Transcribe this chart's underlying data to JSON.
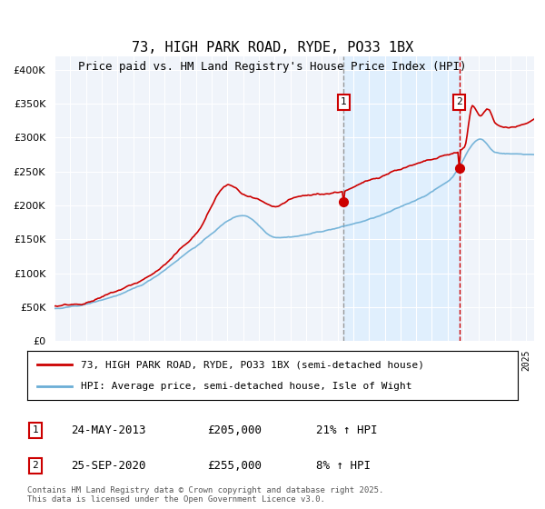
{
  "title": "73, HIGH PARK ROAD, RYDE, PO33 1BX",
  "subtitle": "Price paid vs. HM Land Registry's House Price Index (HPI)",
  "legend_line1": "73, HIGH PARK ROAD, RYDE, PO33 1BX (semi-detached house)",
  "legend_line2": "HPI: Average price, semi-detached house, Isle of Wight",
  "annotation1_label": "1",
  "annotation1_date": "24-MAY-2013",
  "annotation1_price": "£205,000",
  "annotation1_hpi": "21% ↑ HPI",
  "annotation2_label": "2",
  "annotation2_date": "25-SEP-2020",
  "annotation2_price": "£255,000",
  "annotation2_hpi": "8% ↑ HPI",
  "copyright": "Contains HM Land Registry data © Crown copyright and database right 2025.\nThis data is licensed under the Open Government Licence v3.0.",
  "ylim": [
    0,
    420000
  ],
  "yticks": [
    0,
    50000,
    100000,
    150000,
    200000,
    250000,
    300000,
    350000,
    400000
  ],
  "ytick_labels": [
    "£0",
    "£50K",
    "£100K",
    "£150K",
    "£200K",
    "£250K",
    "£300K",
    "£350K",
    "£400K"
  ],
  "background_color": "#f0f4fa",
  "plot_bg": "#f0f4fa",
  "red_line_color": "#cc0000",
  "blue_line_color": "#6baed6",
  "shade_color": "#ddeeff",
  "vline1_color": "#888888",
  "vline2_color": "#cc0000",
  "marker_color": "#cc0000",
  "annotation_box_color": "#cc0000",
  "x_start_year": 1995,
  "x_end_year": 2025,
  "sale1_year": 2013.39,
  "sale2_year": 2020.73,
  "sale1_price": 205000,
  "sale2_price": 255000
}
